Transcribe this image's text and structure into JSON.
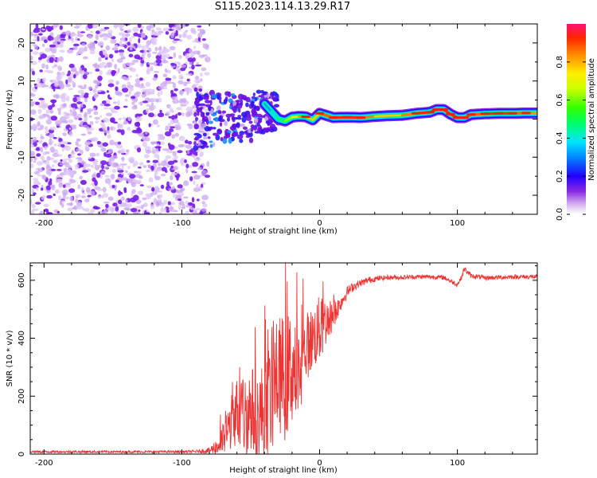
{
  "title": "S115.2023.114.13.29.R17",
  "colors": {
    "snr_line": "#ee3333",
    "axis": "#000000",
    "noise": "#8a2be2"
  },
  "chart_data": [
    {
      "type": "heatmap",
      "name": "spectrogram",
      "xlabel": "Height of straight line (km)",
      "ylabel": "Frequency (Hz)",
      "xlim": [
        -210,
        158
      ],
      "ylim": [
        -25,
        25
      ],
      "xticks": [
        -200,
        -100,
        0,
        100
      ],
      "yticks": [
        -20,
        -10,
        0,
        10,
        20
      ],
      "grid": false,
      "colorbar": {
        "label": "Normalized spectral amplitude",
        "range": [
          0,
          1
        ],
        "ticks": [
          0.0,
          0.2,
          0.4,
          0.6,
          0.8
        ],
        "colormap": "rainbow"
      },
      "regions": [
        {
          "kind": "noise",
          "x": [
            -210,
            -85
          ],
          "freq": [
            -25,
            25
          ],
          "amplitude": "low"
        },
        {
          "kind": "transition",
          "x": [
            -90,
            -30
          ],
          "freq": [
            -8,
            8
          ],
          "amplitude": "medium"
        },
        {
          "kind": "signal",
          "x": [
            -30,
            158
          ],
          "freq": [
            0,
            2
          ],
          "amplitude": "high"
        }
      ],
      "signal_track": {
        "x": [
          -40,
          -35,
          -30,
          -25,
          -20,
          -15,
          -10,
          -5,
          0,
          10,
          20,
          30,
          40,
          50,
          60,
          70,
          80,
          85,
          90,
          95,
          100,
          105,
          110,
          120,
          130,
          140,
          150,
          158
        ],
        "freq": [
          4,
          2,
          0,
          -0.5,
          0.5,
          0.7,
          0.6,
          -0.2,
          1.5,
          0.4,
          0.5,
          0.4,
          0.7,
          0.9,
          1,
          1.5,
          1.8,
          2.5,
          2.5,
          1.3,
          0.4,
          0.4,
          1.2,
          1.4,
          1.5,
          1.5,
          1.6,
          1.6
        ],
        "amplitude": [
          0.3,
          0.35,
          0.4,
          0.55,
          0.7,
          0.8,
          0.85,
          0.7,
          0.85,
          0.9,
          0.95,
          0.9,
          0.8,
          0.75,
          0.8,
          0.9,
          0.95,
          0.95,
          0.95,
          0.9,
          0.95,
          0.92,
          0.85,
          0.9,
          0.95,
          0.9,
          0.85,
          0.8
        ]
      }
    },
    {
      "type": "line",
      "name": "snr",
      "xlabel": "Height of straight line (km)",
      "ylabel": "SNR (10 * v/v)",
      "xlim": [
        -210,
        158
      ],
      "ylim": [
        0,
        660
      ],
      "xticks": [
        -200,
        -100,
        0,
        100
      ],
      "yticks": [
        0,
        200,
        400,
        600
      ],
      "grid": false,
      "series": [
        {
          "name": "SNR",
          "color": "#ee3333",
          "x": [
            -210,
            -180,
            -150,
            -120,
            -100,
            -90,
            -80,
            -75,
            -70,
            -65,
            -60,
            -55,
            -50,
            -45,
            -40,
            -35,
            -30,
            -25,
            -20,
            -15,
            -10,
            -5,
            0,
            5,
            10,
            15,
            20,
            25,
            30,
            35,
            40,
            50,
            60,
            70,
            80,
            90,
            100,
            103,
            105,
            110,
            115,
            120,
            130,
            140,
            150,
            158
          ],
          "values": [
            8,
            8,
            8,
            8,
            8,
            9,
            12,
            25,
            50,
            100,
            150,
            130,
            160,
            120,
            150,
            200,
            280,
            260,
            300,
            250,
            370,
            400,
            430,
            460,
            480,
            520,
            560,
            580,
            590,
            600,
            605,
            610,
            610,
            612,
            612,
            610,
            585,
            610,
            640,
            615,
            612,
            608,
            610,
            612,
            612,
            612
          ],
          "noise_amplitude": [
            4,
            4,
            4,
            4,
            4,
            5,
            10,
            30,
            60,
            90,
            120,
            150,
            150,
            170,
            180,
            200,
            200,
            220,
            200,
            180,
            120,
            110,
            120,
            80,
            50,
            30,
            20,
            15,
            12,
            12,
            10,
            8,
            8,
            8,
            8,
            8,
            8,
            8,
            10,
            8,
            8,
            8,
            8,
            8,
            8,
            8
          ]
        }
      ]
    }
  ]
}
